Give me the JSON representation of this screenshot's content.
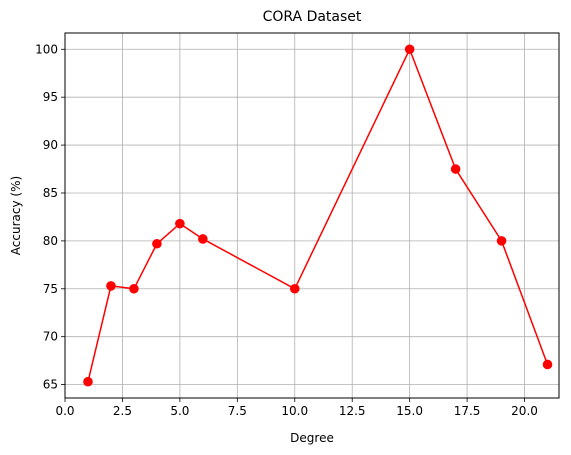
{
  "chart_data": {
    "type": "line",
    "title": "CORA Dataset",
    "xlabel": "Degree",
    "ylabel": "Accuracy (%)",
    "xlim": [
      0,
      21.5
    ],
    "ylim": [
      63.6,
      101.7
    ],
    "xticks": [
      0,
      2.5,
      5,
      7.5,
      10,
      12.5,
      15,
      17.5,
      20
    ],
    "xtick_labels": [
      "0.0",
      "2.5",
      "5.0",
      "7.5",
      "10.0",
      "12.5",
      "15.0",
      "17.5",
      "20.0"
    ],
    "yticks": [
      65,
      70,
      75,
      80,
      85,
      90,
      95,
      100
    ],
    "ytick_labels": [
      "65",
      "70",
      "75",
      "80",
      "85",
      "90",
      "95",
      "100"
    ],
    "grid": true,
    "series": [
      {
        "color": "#ff0000",
        "marker": "circle",
        "x": [
          1,
          2,
          3,
          4,
          5,
          6,
          10,
          15,
          17,
          19,
          21
        ],
        "y": [
          65.3,
          75.3,
          75.0,
          79.7,
          81.8,
          80.2,
          75.0,
          100.0,
          87.5,
          80.0,
          67.1
        ]
      }
    ]
  }
}
